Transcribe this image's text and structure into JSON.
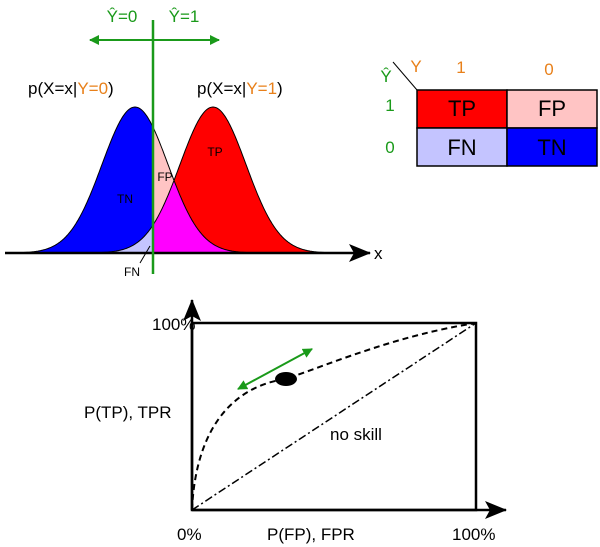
{
  "top_axis": {
    "left_label": "Ŷ=0",
    "right_label": "Ŷ=1",
    "x_label": "x"
  },
  "distributions": [
    {
      "prefix": "p(X=x|",
      "condition": "Y=0",
      "suffix": ")"
    },
    {
      "prefix": "p(X=x|",
      "condition": "Y=1",
      "suffix": ")"
    }
  ],
  "regions": {
    "tn": "TN",
    "fp": "FP",
    "tp": "TP",
    "fn": "FN"
  },
  "confusion_matrix": {
    "actual_header": "Y",
    "predicted_header": "Ŷ",
    "columns": [
      "1",
      "0"
    ],
    "rows": [
      {
        "label": "1",
        "cells": [
          "TP",
          "FP"
        ]
      },
      {
        "label": "0",
        "cells": [
          "FN",
          "TN"
        ]
      }
    ]
  },
  "roc": {
    "y_top": "100%",
    "y_label": "P(TP), TPR",
    "x_left": "0%",
    "x_label": "P(FP), FPR",
    "x_right": "100%",
    "diagonal_label": "no skill"
  }
}
